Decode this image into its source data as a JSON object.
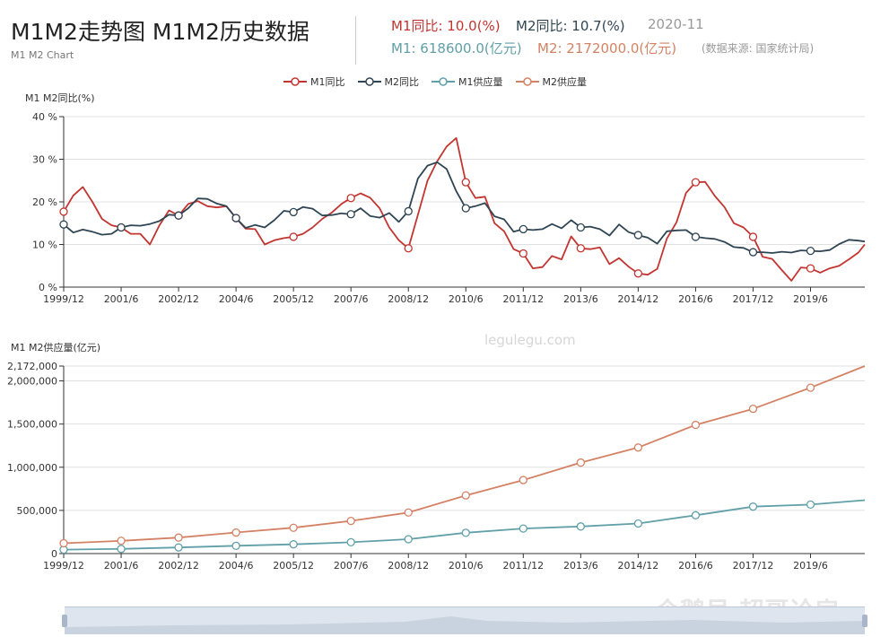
{
  "header": {
    "title": "M1M2走势图 M1M2历史数据",
    "subtitle": "M1 M2 Chart",
    "m1_yoy_label": "M1同比: 10.0(%)",
    "m2_yoy_label": "M2同比: 10.7(%)",
    "date": "2020-11",
    "m1_supply_label": "M1: 618600.0(亿元)",
    "m2_supply_label": "M2: 2172000.0(亿元)",
    "source": "(数据来源: 国家统计局)"
  },
  "legend": {
    "m1_yoy": "M1同比",
    "m2_yoy": "M2同比",
    "m1_supply": "M1供应量",
    "m2_supply": "M2供应量"
  },
  "watermarks": {
    "site": "legulegu.com",
    "brand": "企鹅号 超哥论房"
  },
  "colors": {
    "m1_yoy": "#c23531",
    "m2_yoy": "#2f4554",
    "m1_supply": "#61a0a8",
    "m2_supply": "#d48265"
  },
  "chart_data": [
    {
      "type": "line",
      "ylabel": "M1 M2同比(%)",
      "ylim": [
        0,
        40
      ],
      "y_ticks": [
        "0 %",
        "10 %",
        "20 %",
        "30 %",
        "40 %"
      ],
      "x_tick_labels": [
        "1999/12",
        "2001/6",
        "2002/12",
        "2004/6",
        "2005/12",
        "2007/6",
        "2008/12",
        "2010/6",
        "2011/12",
        "2013/6",
        "2014/12",
        "2016/6",
        "2017/12",
        "2019/6"
      ],
      "x_range": [
        "1999/12",
        "2020/11"
      ],
      "grid": true,
      "series": [
        {
          "name": "M1同比",
          "x": [
            "1999/12",
            "2000/3",
            "2000/6",
            "2000/9",
            "2000/12",
            "2001/3",
            "2001/6",
            "2001/9",
            "2001/12",
            "2002/3",
            "2002/6",
            "2002/9",
            "2002/12",
            "2003/3",
            "2003/6",
            "2003/9",
            "2003/12",
            "2004/3",
            "2004/6",
            "2004/9",
            "2004/12",
            "2005/3",
            "2005/6",
            "2005/9",
            "2005/12",
            "2006/3",
            "2006/6",
            "2006/9",
            "2006/12",
            "2007/3",
            "2007/6",
            "2007/9",
            "2007/12",
            "2008/3",
            "2008/6",
            "2008/9",
            "2008/12",
            "2009/3",
            "2009/6",
            "2009/9",
            "2009/12",
            "2010/3",
            "2010/6",
            "2010/9",
            "2010/12",
            "2011/3",
            "2011/6",
            "2011/9",
            "2011/12",
            "2012/3",
            "2012/6",
            "2012/9",
            "2012/12",
            "2013/3",
            "2013/6",
            "2013/9",
            "2013/12",
            "2014/3",
            "2014/6",
            "2014/9",
            "2014/12",
            "2015/3",
            "2015/6",
            "2015/9",
            "2015/12",
            "2016/3",
            "2016/6",
            "2016/9",
            "2016/12",
            "2017/3",
            "2017/6",
            "2017/9",
            "2017/12",
            "2018/3",
            "2018/6",
            "2018/9",
            "2018/12",
            "2019/3",
            "2019/6",
            "2019/9",
            "2019/12",
            "2020/3",
            "2020/6",
            "2020/9",
            "2020/11"
          ],
          "values": [
            17.7,
            21.5,
            23.5,
            20.0,
            16.0,
            14.5,
            14.0,
            12.5,
            12.5,
            10.0,
            14.5,
            18.0,
            16.8,
            19.5,
            20.2,
            19.0,
            18.7,
            19.0,
            16.2,
            13.7,
            13.6,
            10.0,
            11.0,
            11.5,
            11.8,
            12.5,
            14.0,
            16.0,
            17.5,
            19.5,
            20.9,
            22.0,
            21.0,
            18.5,
            14.0,
            11.0,
            9.1,
            17.0,
            25.0,
            29.5,
            33.0,
            35.0,
            24.6,
            20.9,
            21.2,
            15.0,
            13.1,
            8.9,
            7.9,
            4.4,
            4.7,
            7.3,
            6.5,
            11.9,
            9.1,
            8.9,
            9.3,
            5.4,
            6.8,
            4.8,
            3.2,
            2.9,
            4.3,
            11.4,
            15.2,
            22.1,
            24.6,
            24.7,
            21.4,
            18.8,
            15.0,
            14.0,
            11.8,
            7.1,
            6.6,
            4.0,
            1.5,
            4.6,
            4.4,
            3.4,
            4.4,
            5.0,
            6.5,
            8.1,
            10.0
          ]
        },
        {
          "name": "M2同比",
          "x": [
            "1999/12",
            "2000/3",
            "2000/6",
            "2000/9",
            "2000/12",
            "2001/3",
            "2001/6",
            "2001/9",
            "2001/12",
            "2002/3",
            "2002/6",
            "2002/9",
            "2002/12",
            "2003/3",
            "2003/6",
            "2003/9",
            "2003/12",
            "2004/3",
            "2004/6",
            "2004/9",
            "2004/12",
            "2005/3",
            "2005/6",
            "2005/9",
            "2005/12",
            "2006/3",
            "2006/6",
            "2006/9",
            "2006/12",
            "2007/3",
            "2007/6",
            "2007/9",
            "2007/12",
            "2008/3",
            "2008/6",
            "2008/9",
            "2008/12",
            "2009/3",
            "2009/6",
            "2009/9",
            "2009/12",
            "2010/3",
            "2010/6",
            "2010/9",
            "2010/12",
            "2011/3",
            "2011/6",
            "2011/9",
            "2011/12",
            "2012/3",
            "2012/6",
            "2012/9",
            "2012/12",
            "2013/3",
            "2013/6",
            "2013/9",
            "2013/12",
            "2014/3",
            "2014/6",
            "2014/9",
            "2014/12",
            "2015/3",
            "2015/6",
            "2015/9",
            "2015/12",
            "2016/3",
            "2016/6",
            "2016/9",
            "2016/12",
            "2017/3",
            "2017/6",
            "2017/9",
            "2017/12",
            "2018/3",
            "2018/6",
            "2018/9",
            "2018/12",
            "2019/3",
            "2019/6",
            "2019/9",
            "2019/12",
            "2020/3",
            "2020/6",
            "2020/9",
            "2020/11"
          ],
          "values": [
            14.7,
            12.8,
            13.5,
            13.0,
            12.3,
            12.5,
            14.0,
            14.5,
            14.4,
            14.8,
            15.5,
            17.0,
            16.8,
            18.5,
            20.8,
            20.7,
            19.6,
            19.0,
            16.2,
            13.9,
            14.6,
            14.0,
            15.7,
            17.9,
            17.6,
            18.8,
            18.4,
            16.8,
            16.9,
            17.3,
            17.1,
            18.5,
            16.7,
            16.3,
            17.4,
            15.3,
            17.8,
            25.5,
            28.5,
            29.3,
            27.7,
            22.5,
            18.5,
            19.0,
            19.7,
            16.6,
            15.9,
            13.0,
            13.6,
            13.4,
            13.6,
            14.8,
            13.8,
            15.7,
            14.0,
            14.2,
            13.6,
            12.1,
            14.7,
            12.9,
            12.2,
            11.6,
            10.2,
            13.1,
            13.3,
            13.4,
            11.8,
            11.5,
            11.3,
            10.6,
            9.4,
            9.2,
            8.2,
            8.2,
            8.0,
            8.3,
            8.1,
            8.6,
            8.5,
            8.4,
            8.7,
            10.1,
            11.1,
            10.9,
            10.7
          ]
        }
      ]
    },
    {
      "type": "line",
      "ylabel": "M1 M2供应量(亿元)",
      "ylim": [
        0,
        2172000
      ],
      "y_ticks": [
        "0",
        "500,000",
        "1,000,000",
        "1,500,000",
        "2,000,000",
        "2,172,000"
      ],
      "x_tick_labels": [
        "1999/12",
        "2001/6",
        "2002/12",
        "2004/6",
        "2005/12",
        "2007/6",
        "2008/12",
        "2010/6",
        "2011/12",
        "2013/6",
        "2014/12",
        "2016/6",
        "2017/12",
        "2019/6"
      ],
      "x_range": [
        "1999/12",
        "2020/11"
      ],
      "grid": true,
      "series": [
        {
          "name": "M1供应量",
          "x": [
            "1999/12",
            "2001/6",
            "2002/12",
            "2004/6",
            "2005/12",
            "2007/6",
            "2008/12",
            "2010/6",
            "2011/12",
            "2013/6",
            "2014/12",
            "2016/6",
            "2017/12",
            "2019/6",
            "2020/11"
          ],
          "values": [
            45800,
            54000,
            70900,
            90000,
            107300,
            131000,
            166200,
            240600,
            289800,
            313500,
            348100,
            443600,
            543800,
            567700,
            618600
          ]
        },
        {
          "name": "M2供应量",
          "x": [
            "1999/12",
            "2001/6",
            "2002/12",
            "2004/6",
            "2005/12",
            "2007/6",
            "2008/12",
            "2010/6",
            "2011/12",
            "2013/6",
            "2014/12",
            "2016/6",
            "2017/12",
            "2019/6",
            "2020/11"
          ],
          "values": [
            119900,
            147800,
            185000,
            243800,
            298800,
            377800,
            475200,
            673900,
            851600,
            1054000,
            1228400,
            1490500,
            1676800,
            1921400,
            2172000
          ]
        }
      ]
    }
  ]
}
